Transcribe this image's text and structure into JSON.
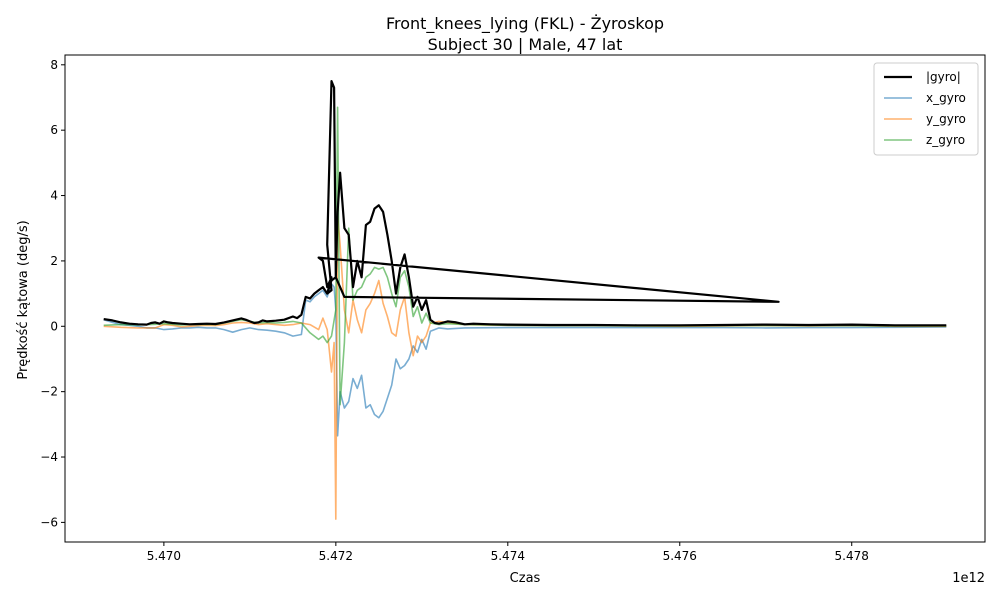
{
  "chart_data": {
    "type": "line",
    "title": "Front_knees_lying (FKL) - Żyroskop",
    "subtitle": "Subject 30 | Male, 47 lat",
    "xlabel": "Czas",
    "ylabel": "Prędkość kątowa (deg/s)",
    "x_offset_label": "1e12",
    "xlim": [
      5.46885,
      5.47955
    ],
    "ylim": [
      -6.6,
      8.3
    ],
    "x_ticks": [
      5.47,
      5.472,
      5.474,
      5.476,
      5.478
    ],
    "x_tick_labels": [
      "5.470",
      "5.472",
      "5.474",
      "5.476",
      "5.478"
    ],
    "y_ticks": [
      -6,
      -4,
      -2,
      0,
      2,
      4,
      6,
      8
    ],
    "y_tick_labels": [
      "−6",
      "−4",
      "−2",
      "0",
      "2",
      "4",
      "6",
      "8"
    ],
    "grid": false,
    "legend_position": "top-right",
    "series": [
      {
        "name": "|gyro|",
        "color": "#000000",
        "points": [
          [
            5.4693,
            0.22
          ],
          [
            5.4694,
            0.18
          ],
          [
            5.4695,
            0.12
          ],
          [
            5.4696,
            0.08
          ],
          [
            5.4697,
            0.06
          ],
          [
            5.4698,
            0.05
          ],
          [
            5.46985,
            0.1
          ],
          [
            5.4699,
            0.12
          ],
          [
            5.46995,
            0.08
          ],
          [
            5.47,
            0.15
          ],
          [
            5.47005,
            0.12
          ],
          [
            5.4701,
            0.1
          ],
          [
            5.4702,
            0.08
          ],
          [
            5.4703,
            0.06
          ],
          [
            5.4704,
            0.07
          ],
          [
            5.4705,
            0.08
          ],
          [
            5.4706,
            0.07
          ],
          [
            5.4707,
            0.12
          ],
          [
            5.4708,
            0.18
          ],
          [
            5.4709,
            0.24
          ],
          [
            5.47095,
            0.2
          ],
          [
            5.471,
            0.15
          ],
          [
            5.47105,
            0.1
          ],
          [
            5.4711,
            0.12
          ],
          [
            5.47115,
            0.18
          ],
          [
            5.4712,
            0.15
          ],
          [
            5.4713,
            0.17
          ],
          [
            5.4714,
            0.2
          ],
          [
            5.4715,
            0.3
          ],
          [
            5.47155,
            0.25
          ],
          [
            5.4716,
            0.35
          ],
          [
            5.47165,
            0.9
          ],
          [
            5.4717,
            0.85
          ],
          [
            5.47175,
            1.0
          ],
          [
            5.4718,
            1.1
          ],
          [
            5.47185,
            1.2
          ],
          [
            5.4719,
            1.0
          ],
          [
            5.47195,
            1.4
          ],
          [
            5.472,
            1.5
          ],
          [
            5.47205,
            1.2
          ],
          [
            5.4721,
            0.9
          ],
          [
            5.47715,
            0.75
          ],
          [
            5.4718,
            2.1
          ],
          [
            5.47185,
            2.0
          ],
          [
            5.4719,
            1.2
          ],
          [
            5.47195,
            1.5
          ],
          [
            5.4719,
            1.0
          ],
          [
            5.47195,
            1.1
          ],
          [
            5.4719,
            2.5
          ],
          [
            5.47195,
            7.5
          ],
          [
            5.47198,
            7.3
          ],
          [
            5.472,
            1.5
          ],
          [
            5.47202,
            3.5
          ],
          [
            5.47205,
            4.7
          ],
          [
            5.4721,
            3.0
          ],
          [
            5.47215,
            2.8
          ],
          [
            5.4722,
            1.2
          ],
          [
            5.47225,
            2.0
          ],
          [
            5.4723,
            1.5
          ],
          [
            5.47235,
            3.1
          ],
          [
            5.4724,
            3.2
          ],
          [
            5.47245,
            3.6
          ],
          [
            5.4725,
            3.7
          ],
          [
            5.47255,
            3.5
          ],
          [
            5.4726,
            2.8
          ],
          [
            5.47265,
            2.0
          ],
          [
            5.4727,
            1.0
          ],
          [
            5.47275,
            1.8
          ],
          [
            5.4728,
            2.2
          ],
          [
            5.47285,
            1.5
          ],
          [
            5.4729,
            0.6
          ],
          [
            5.47295,
            0.9
          ],
          [
            5.473,
            0.5
          ],
          [
            5.47305,
            0.8
          ],
          [
            5.4731,
            0.2
          ],
          [
            5.47315,
            0.1
          ],
          [
            5.4732,
            0.08
          ],
          [
            5.4733,
            0.15
          ],
          [
            5.4734,
            0.12
          ],
          [
            5.4735,
            0.06
          ],
          [
            5.4736,
            0.08
          ],
          [
            5.4738,
            0.06
          ],
          [
            5.474,
            0.05
          ],
          [
            5.4745,
            0.04
          ],
          [
            5.475,
            0.04
          ],
          [
            5.4755,
            0.03
          ],
          [
            5.476,
            0.03
          ],
          [
            5.4765,
            0.04
          ],
          [
            5.477,
            0.05
          ],
          [
            5.4775,
            0.04
          ],
          [
            5.478,
            0.05
          ],
          [
            5.4785,
            0.03
          ],
          [
            5.4791,
            0.03
          ]
        ]
      },
      {
        "name": "x_gyro",
        "color": "#1f77b4",
        "points": [
          [
            5.4693,
            0.2
          ],
          [
            5.4694,
            0.12
          ],
          [
            5.4695,
            0.05
          ],
          [
            5.4696,
            0.03
          ],
          [
            5.4697,
            0.0
          ],
          [
            5.4698,
            -0.05
          ],
          [
            5.4699,
            -0.05
          ],
          [
            5.47,
            -0.1
          ],
          [
            5.4701,
            -0.08
          ],
          [
            5.4702,
            -0.05
          ],
          [
            5.4703,
            -0.05
          ],
          [
            5.4704,
            -0.03
          ],
          [
            5.4705,
            -0.05
          ],
          [
            5.4706,
            -0.05
          ],
          [
            5.4707,
            -0.1
          ],
          [
            5.4708,
            -0.18
          ],
          [
            5.4709,
            -0.1
          ],
          [
            5.471,
            -0.05
          ],
          [
            5.4711,
            -0.1
          ],
          [
            5.4712,
            -0.12
          ],
          [
            5.4713,
            -0.15
          ],
          [
            5.4714,
            -0.2
          ],
          [
            5.4715,
            -0.3
          ],
          [
            5.4716,
            -0.25
          ],
          [
            5.47165,
            0.8
          ],
          [
            5.4717,
            0.75
          ],
          [
            5.47175,
            0.9
          ],
          [
            5.4718,
            1.0
          ],
          [
            5.47185,
            1.1
          ],
          [
            5.4719,
            0.9
          ],
          [
            5.47195,
            1.3
          ],
          [
            5.47198,
            1.2
          ],
          [
            5.472,
            0.5
          ],
          [
            5.47202,
            -3.35
          ],
          [
            5.47205,
            -2.0
          ],
          [
            5.4721,
            -2.5
          ],
          [
            5.47215,
            -2.3
          ],
          [
            5.4722,
            -1.6
          ],
          [
            5.47225,
            -1.9
          ],
          [
            5.4723,
            -1.5
          ],
          [
            5.47235,
            -2.5
          ],
          [
            5.4724,
            -2.4
          ],
          [
            5.47245,
            -2.7
          ],
          [
            5.4725,
            -2.8
          ],
          [
            5.47255,
            -2.6
          ],
          [
            5.4726,
            -2.2
          ],
          [
            5.47265,
            -1.8
          ],
          [
            5.4727,
            -1.0
          ],
          [
            5.47275,
            -1.3
          ],
          [
            5.4728,
            -1.2
          ],
          [
            5.47285,
            -1.0
          ],
          [
            5.4729,
            -0.6
          ],
          [
            5.47295,
            -0.8
          ],
          [
            5.473,
            -0.4
          ],
          [
            5.47305,
            -0.7
          ],
          [
            5.4731,
            -0.15
          ],
          [
            5.4732,
            -0.05
          ],
          [
            5.4733,
            -0.08
          ],
          [
            5.4735,
            -0.05
          ],
          [
            5.474,
            -0.04
          ],
          [
            5.4745,
            -0.04
          ],
          [
            5.475,
            -0.04
          ],
          [
            5.4755,
            -0.04
          ],
          [
            5.476,
            -0.04
          ],
          [
            5.4765,
            -0.04
          ],
          [
            5.477,
            -0.05
          ],
          [
            5.4775,
            -0.04
          ],
          [
            5.478,
            -0.04
          ],
          [
            5.4785,
            -0.03
          ],
          [
            5.4791,
            -0.02
          ]
        ]
      },
      {
        "name": "y_gyro",
        "color": "#ff7f0e",
        "points": [
          [
            5.4693,
            0.0
          ],
          [
            5.4695,
            -0.03
          ],
          [
            5.4697,
            -0.05
          ],
          [
            5.4699,
            -0.05
          ],
          [
            5.47,
            0.05
          ],
          [
            5.4701,
            0.03
          ],
          [
            5.4702,
            -0.02
          ],
          [
            5.4703,
            0.0
          ],
          [
            5.4704,
            0.02
          ],
          [
            5.4705,
            0.03
          ],
          [
            5.4706,
            0.02
          ],
          [
            5.4707,
            0.05
          ],
          [
            5.4708,
            0.1
          ],
          [
            5.4709,
            0.12
          ],
          [
            5.471,
            0.1
          ],
          [
            5.4711,
            0.05
          ],
          [
            5.4712,
            0.08
          ],
          [
            5.4713,
            0.05
          ],
          [
            5.4714,
            0.03
          ],
          [
            5.4715,
            0.05
          ],
          [
            5.4716,
            0.1
          ],
          [
            5.4717,
            0.05
          ],
          [
            5.4718,
            -0.1
          ],
          [
            5.47185,
            0.25
          ],
          [
            5.4719,
            -0.1
          ],
          [
            5.47195,
            -1.4
          ],
          [
            5.47198,
            -0.5
          ],
          [
            5.472,
            -5.9
          ],
          [
            5.47202,
            3.4
          ],
          [
            5.47205,
            2.5
          ],
          [
            5.4721,
            0.5
          ],
          [
            5.47215,
            -0.2
          ],
          [
            5.4722,
            0.8
          ],
          [
            5.47225,
            0.2
          ],
          [
            5.4723,
            -0.2
          ],
          [
            5.47235,
            0.5
          ],
          [
            5.4724,
            0.7
          ],
          [
            5.47245,
            1.0
          ],
          [
            5.4725,
            1.4
          ],
          [
            5.47255,
            0.7
          ],
          [
            5.4726,
            0.3
          ],
          [
            5.47265,
            -0.2
          ],
          [
            5.4727,
            -0.3
          ],
          [
            5.47275,
            0.5
          ],
          [
            5.4728,
            0.9
          ],
          [
            5.47285,
            -0.2
          ],
          [
            5.4729,
            -0.9
          ],
          [
            5.47295,
            -0.3
          ],
          [
            5.473,
            -0.5
          ],
          [
            5.47305,
            -0.3
          ],
          [
            5.4731,
            0.1
          ],
          [
            5.4732,
            0.15
          ],
          [
            5.4733,
            0.12
          ],
          [
            5.4735,
            0.05
          ],
          [
            5.474,
            0.03
          ],
          [
            5.4745,
            0.02
          ],
          [
            5.475,
            0.02
          ],
          [
            5.4755,
            0.01
          ],
          [
            5.476,
            0.0
          ],
          [
            5.4765,
            0.01
          ],
          [
            5.477,
            0.02
          ],
          [
            5.4775,
            0.01
          ],
          [
            5.478,
            0.02
          ],
          [
            5.4785,
            0.0
          ],
          [
            5.4791,
            0.0
          ]
        ]
      },
      {
        "name": "z_gyro",
        "color": "#2ca02c",
        "points": [
          [
            5.4693,
            0.03
          ],
          [
            5.4695,
            0.05
          ],
          [
            5.4697,
            0.04
          ],
          [
            5.4699,
            0.06
          ],
          [
            5.47,
            0.08
          ],
          [
            5.4701,
            0.06
          ],
          [
            5.4702,
            0.04
          ],
          [
            5.4703,
            0.05
          ],
          [
            5.4704,
            0.05
          ],
          [
            5.4705,
            0.06
          ],
          [
            5.4706,
            0.05
          ],
          [
            5.4707,
            0.1
          ],
          [
            5.4708,
            0.15
          ],
          [
            5.4709,
            0.2
          ],
          [
            5.471,
            0.15
          ],
          [
            5.4711,
            0.1
          ],
          [
            5.4712,
            0.12
          ],
          [
            5.4713,
            0.1
          ],
          [
            5.4714,
            0.12
          ],
          [
            5.4715,
            0.15
          ],
          [
            5.4716,
            0.1
          ],
          [
            5.4717,
            -0.2
          ],
          [
            5.4718,
            -0.4
          ],
          [
            5.47185,
            -0.3
          ],
          [
            5.4719,
            -0.5
          ],
          [
            5.47195,
            -0.3
          ],
          [
            5.472,
            0.5
          ],
          [
            5.47202,
            6.7
          ],
          [
            5.47205,
            -2.4
          ],
          [
            5.4721,
            -0.5
          ],
          [
            5.47215,
            3.0
          ],
          [
            5.4722,
            0.8
          ],
          [
            5.47225,
            1.1
          ],
          [
            5.4723,
            1.2
          ],
          [
            5.47235,
            1.5
          ],
          [
            5.4724,
            1.6
          ],
          [
            5.47245,
            1.8
          ],
          [
            5.4725,
            1.75
          ],
          [
            5.47255,
            1.8
          ],
          [
            5.4726,
            1.5
          ],
          [
            5.47265,
            1.0
          ],
          [
            5.4727,
            0.6
          ],
          [
            5.47275,
            1.5
          ],
          [
            5.4728,
            1.7
          ],
          [
            5.47285,
            1.2
          ],
          [
            5.4729,
            0.3
          ],
          [
            5.47295,
            0.6
          ],
          [
            5.473,
            0.1
          ],
          [
            5.47305,
            0.4
          ],
          [
            5.4731,
            0.1
          ],
          [
            5.4732,
            0.05
          ],
          [
            5.4733,
            0.08
          ],
          [
            5.4735,
            0.05
          ],
          [
            5.474,
            0.03
          ],
          [
            5.4745,
            0.02
          ],
          [
            5.475,
            0.02
          ],
          [
            5.4755,
            0.01
          ],
          [
            5.476,
            0.01
          ],
          [
            5.4765,
            0.02
          ],
          [
            5.477,
            0.02
          ],
          [
            5.4775,
            0.02
          ],
          [
            5.478,
            0.02
          ],
          [
            5.4785,
            0.01
          ],
          [
            5.4791,
            0.01
          ]
        ]
      }
    ]
  }
}
